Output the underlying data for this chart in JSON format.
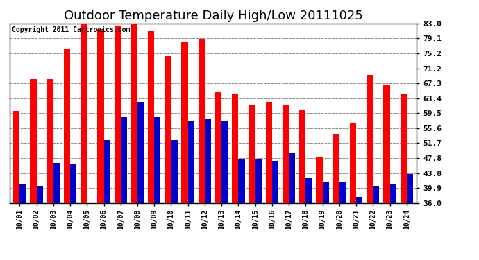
{
  "title": "Outdoor Temperature Daily High/Low 20111025",
  "copyright": "Copyright 2011 Cartronics.com",
  "dates": [
    "10/01",
    "10/02",
    "10/03",
    "10/04",
    "10/05",
    "10/06",
    "10/07",
    "10/08",
    "10/09",
    "10/10",
    "10/11",
    "10/12",
    "10/13",
    "10/14",
    "10/15",
    "10/16",
    "10/17",
    "10/18",
    "10/19",
    "10/20",
    "10/21",
    "10/22",
    "10/23",
    "10/24"
  ],
  "highs": [
    60.0,
    68.5,
    68.5,
    76.5,
    83.5,
    81.5,
    82.5,
    83.5,
    81.0,
    74.5,
    78.0,
    79.0,
    65.0,
    64.5,
    61.5,
    62.5,
    61.5,
    60.5,
    48.0,
    54.0,
    57.0,
    69.5,
    67.0,
    64.5
  ],
  "lows": [
    41.0,
    40.5,
    46.5,
    46.0,
    36.0,
    52.5,
    58.5,
    62.5,
    58.5,
    52.5,
    57.5,
    58.0,
    57.5,
    47.5,
    47.5,
    47.0,
    49.0,
    42.5,
    41.5,
    41.5,
    37.5,
    40.5,
    41.0,
    43.5
  ],
  "high_color": "#ff0000",
  "low_color": "#0000cc",
  "yticks": [
    36.0,
    39.9,
    43.8,
    47.8,
    51.7,
    55.6,
    59.5,
    63.4,
    67.3,
    71.2,
    75.2,
    79.1,
    83.0
  ],
  "ymin": 36.0,
  "ymax": 83.0,
  "background_color": "#ffffff",
  "plot_background": "#ffffff",
  "grid_color": "#888888",
  "title_fontsize": 13,
  "copyright_fontsize": 7,
  "tick_fontsize": 8,
  "bar_width": 0.38
}
